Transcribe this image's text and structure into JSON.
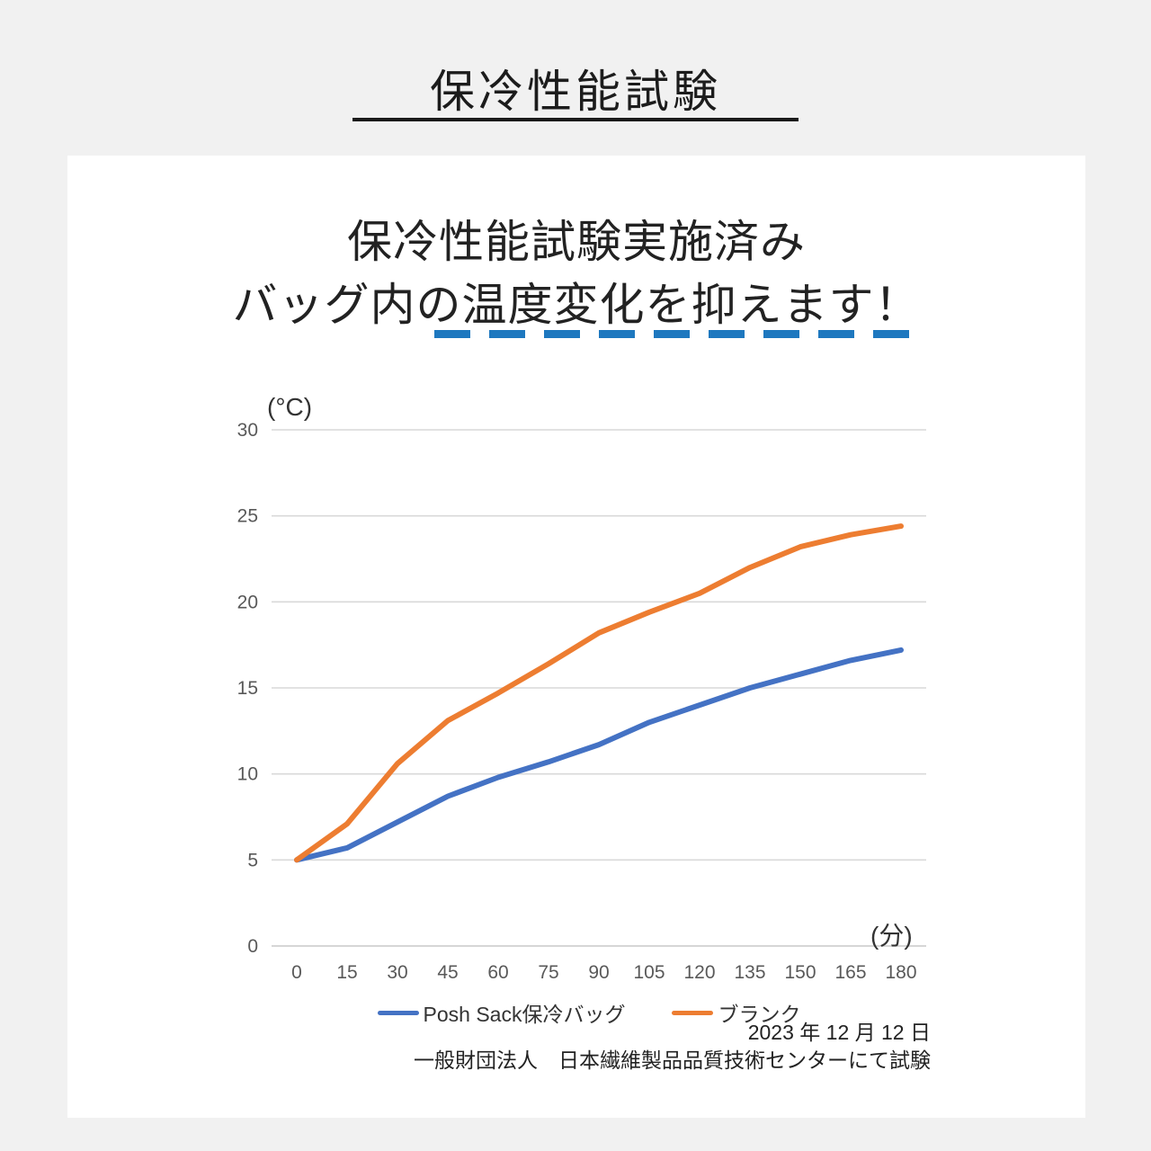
{
  "page": {
    "title": "保冷性能試験"
  },
  "card": {
    "headline_line1": "保冷性能試験実施済み",
    "headline_line2": "バッグ内の温度変化を抑えます！",
    "footnote_date": "2023 年 12 月 12 日",
    "footnote_org": "一般財団法人　日本繊維製品品質技術センターにて試験"
  },
  "chart_data": {
    "type": "line",
    "title": "保冷性能試験",
    "xlabel": "(分)",
    "ylabel": "(°C)",
    "categories": [
      0,
      15,
      30,
      45,
      60,
      75,
      90,
      105,
      120,
      135,
      150,
      165,
      180
    ],
    "series": [
      {
        "name": "Posh Sack保冷バッグ",
        "color": "#4472C4",
        "values": [
          5.0,
          5.7,
          7.2,
          8.7,
          9.8,
          10.7,
          11.7,
          13.0,
          14.0,
          15.0,
          15.8,
          16.6,
          17.2
        ]
      },
      {
        "name": "ブランク",
        "color": "#ED7D31",
        "values": [
          5.0,
          7.1,
          10.6,
          13.1,
          14.7,
          16.4,
          18.2,
          19.4,
          20.5,
          22.0,
          23.2,
          23.9,
          24.4
        ]
      }
    ],
    "ylim": [
      0,
      30
    ],
    "yticks": [
      0,
      5,
      10,
      15,
      20,
      25,
      30
    ],
    "grid": "horizontal",
    "gridline_color": "#D9D9D9",
    "legend_position": "bottom",
    "accent_dash_color": "#1E78BF"
  }
}
